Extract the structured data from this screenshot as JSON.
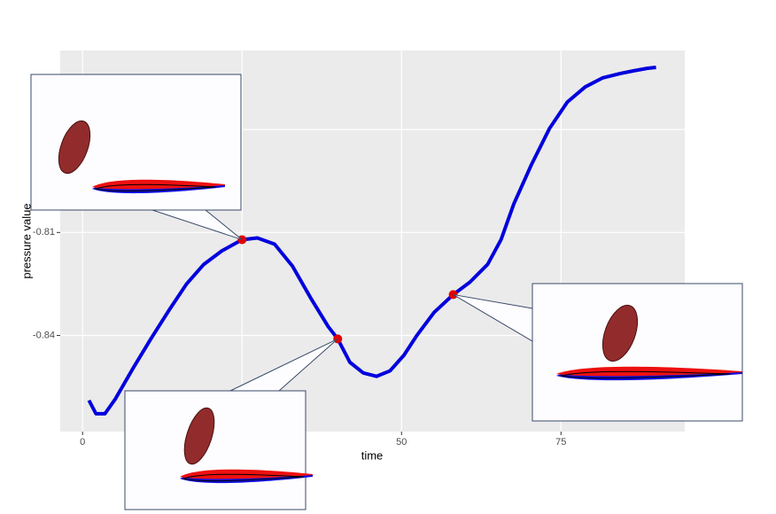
{
  "chart_data": {
    "type": "line",
    "x_label": "time",
    "y_label": "pressure value",
    "xlim": [
      -3.5,
      94.4
    ],
    "ylim": [
      -0.868,
      -0.757
    ],
    "xticks": [
      0,
      25,
      50,
      75
    ],
    "yticks": [
      -0.78,
      -0.81,
      -0.84
    ],
    "grid": true,
    "series": [
      {
        "color": "#0000dd",
        "x": [
          1.0,
          2.1,
          3.5,
          5.1,
          7.9,
          10.7,
          13.5,
          16.3,
          19.0,
          21.8,
          25.0,
          27.4,
          30.1,
          32.9,
          35.7,
          38.5,
          40.0,
          41.9,
          44.0,
          46.1,
          48.2,
          50.4,
          52.4,
          55.1,
          58.1,
          60.7,
          63.5,
          65.6,
          67.6,
          70.4,
          73.2,
          76.0,
          78.8,
          81.5,
          84.3,
          86.4,
          88.5,
          89.9
        ],
        "values": [
          -0.8589,
          -0.8628,
          -0.8628,
          -0.8586,
          -0.8496,
          -0.841,
          -0.8328,
          -0.825,
          -0.8193,
          -0.8154,
          -0.8121,
          -0.8116,
          -0.8134,
          -0.8198,
          -0.8289,
          -0.8374,
          -0.841,
          -0.8478,
          -0.8509,
          -0.8519,
          -0.8503,
          -0.8457,
          -0.84,
          -0.8333,
          -0.8281,
          -0.8245,
          -0.8193,
          -0.8121,
          -0.8017,
          -0.7901,
          -0.7797,
          -0.772,
          -0.7676,
          -0.765,
          -0.7637,
          -0.7629,
          -0.7622,
          -0.7619
        ]
      },
      {
        "type": "scatter",
        "color": "#e00000",
        "x": [
          25.0,
          40.0,
          58.1
        ],
        "values": [
          -0.8121,
          -0.841,
          -0.8281
        ]
      }
    ]
  }
}
